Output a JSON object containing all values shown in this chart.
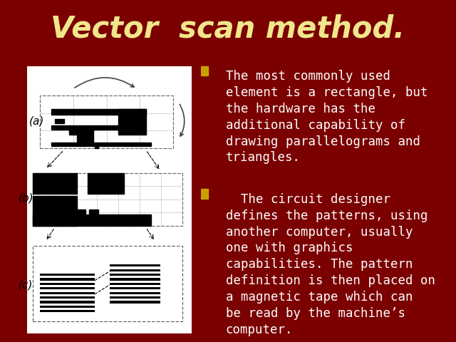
{
  "title": "Vector  scan method.",
  "title_color": "#F0E68C",
  "title_fontsize": 30,
  "background_color": "#7B0000",
  "bullet_color": "#C8A000",
  "text_color": "#FFFFFF",
  "bullet1": "The most commonly used\nelement is a rectangle, but\nthe hardware has the\nadditional capability of\ndrawing parallelograms and\ntriangles.",
  "bullet2": "  The circuit designer\ndefines the patterns, using\nanother computer, usually\none with graphics\ncapabilities. The pattern\ndefinition is then placed on\na magnetic tape which can\nbe read by the machine’s\ncomputer.",
  "label_a": "(a)",
  "label_b": "(b)",
  "label_c": "(c)",
  "text_fontsize": 12.5,
  "label_fontsize": 11
}
